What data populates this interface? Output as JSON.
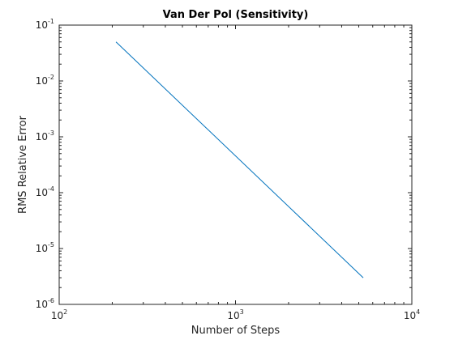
{
  "chart_data": {
    "type": "line",
    "title": "Van Der Pol (Sensitivity)",
    "xlabel": "Number of Steps",
    "ylabel": "RMS Relative Error",
    "xscale": "log",
    "yscale": "log",
    "xlim": [
      100,
      10000
    ],
    "ylim": [
      1e-06,
      0.1
    ],
    "grid": false,
    "x_ticks": [
      {
        "base": "10",
        "exp": "2",
        "value": 100
      },
      {
        "base": "10",
        "exp": "3",
        "value": 1000
      },
      {
        "base": "10",
        "exp": "4",
        "value": 10000
      }
    ],
    "y_ticks": [
      {
        "base": "10",
        "exp": "-6",
        "value": 1e-06
      },
      {
        "base": "10",
        "exp": "-5",
        "value": 1e-05
      },
      {
        "base": "10",
        "exp": "-4",
        "value": 0.0001
      },
      {
        "base": "10",
        "exp": "-3",
        "value": 0.001
      },
      {
        "base": "10",
        "exp": "-2",
        "value": 0.01
      },
      {
        "base": "10",
        "exp": "-1",
        "value": 0.1
      }
    ],
    "series": [
      {
        "color": "#0072BD",
        "x": [
          210,
          5300
        ],
        "y": [
          0.05,
          3e-06
        ]
      }
    ]
  }
}
